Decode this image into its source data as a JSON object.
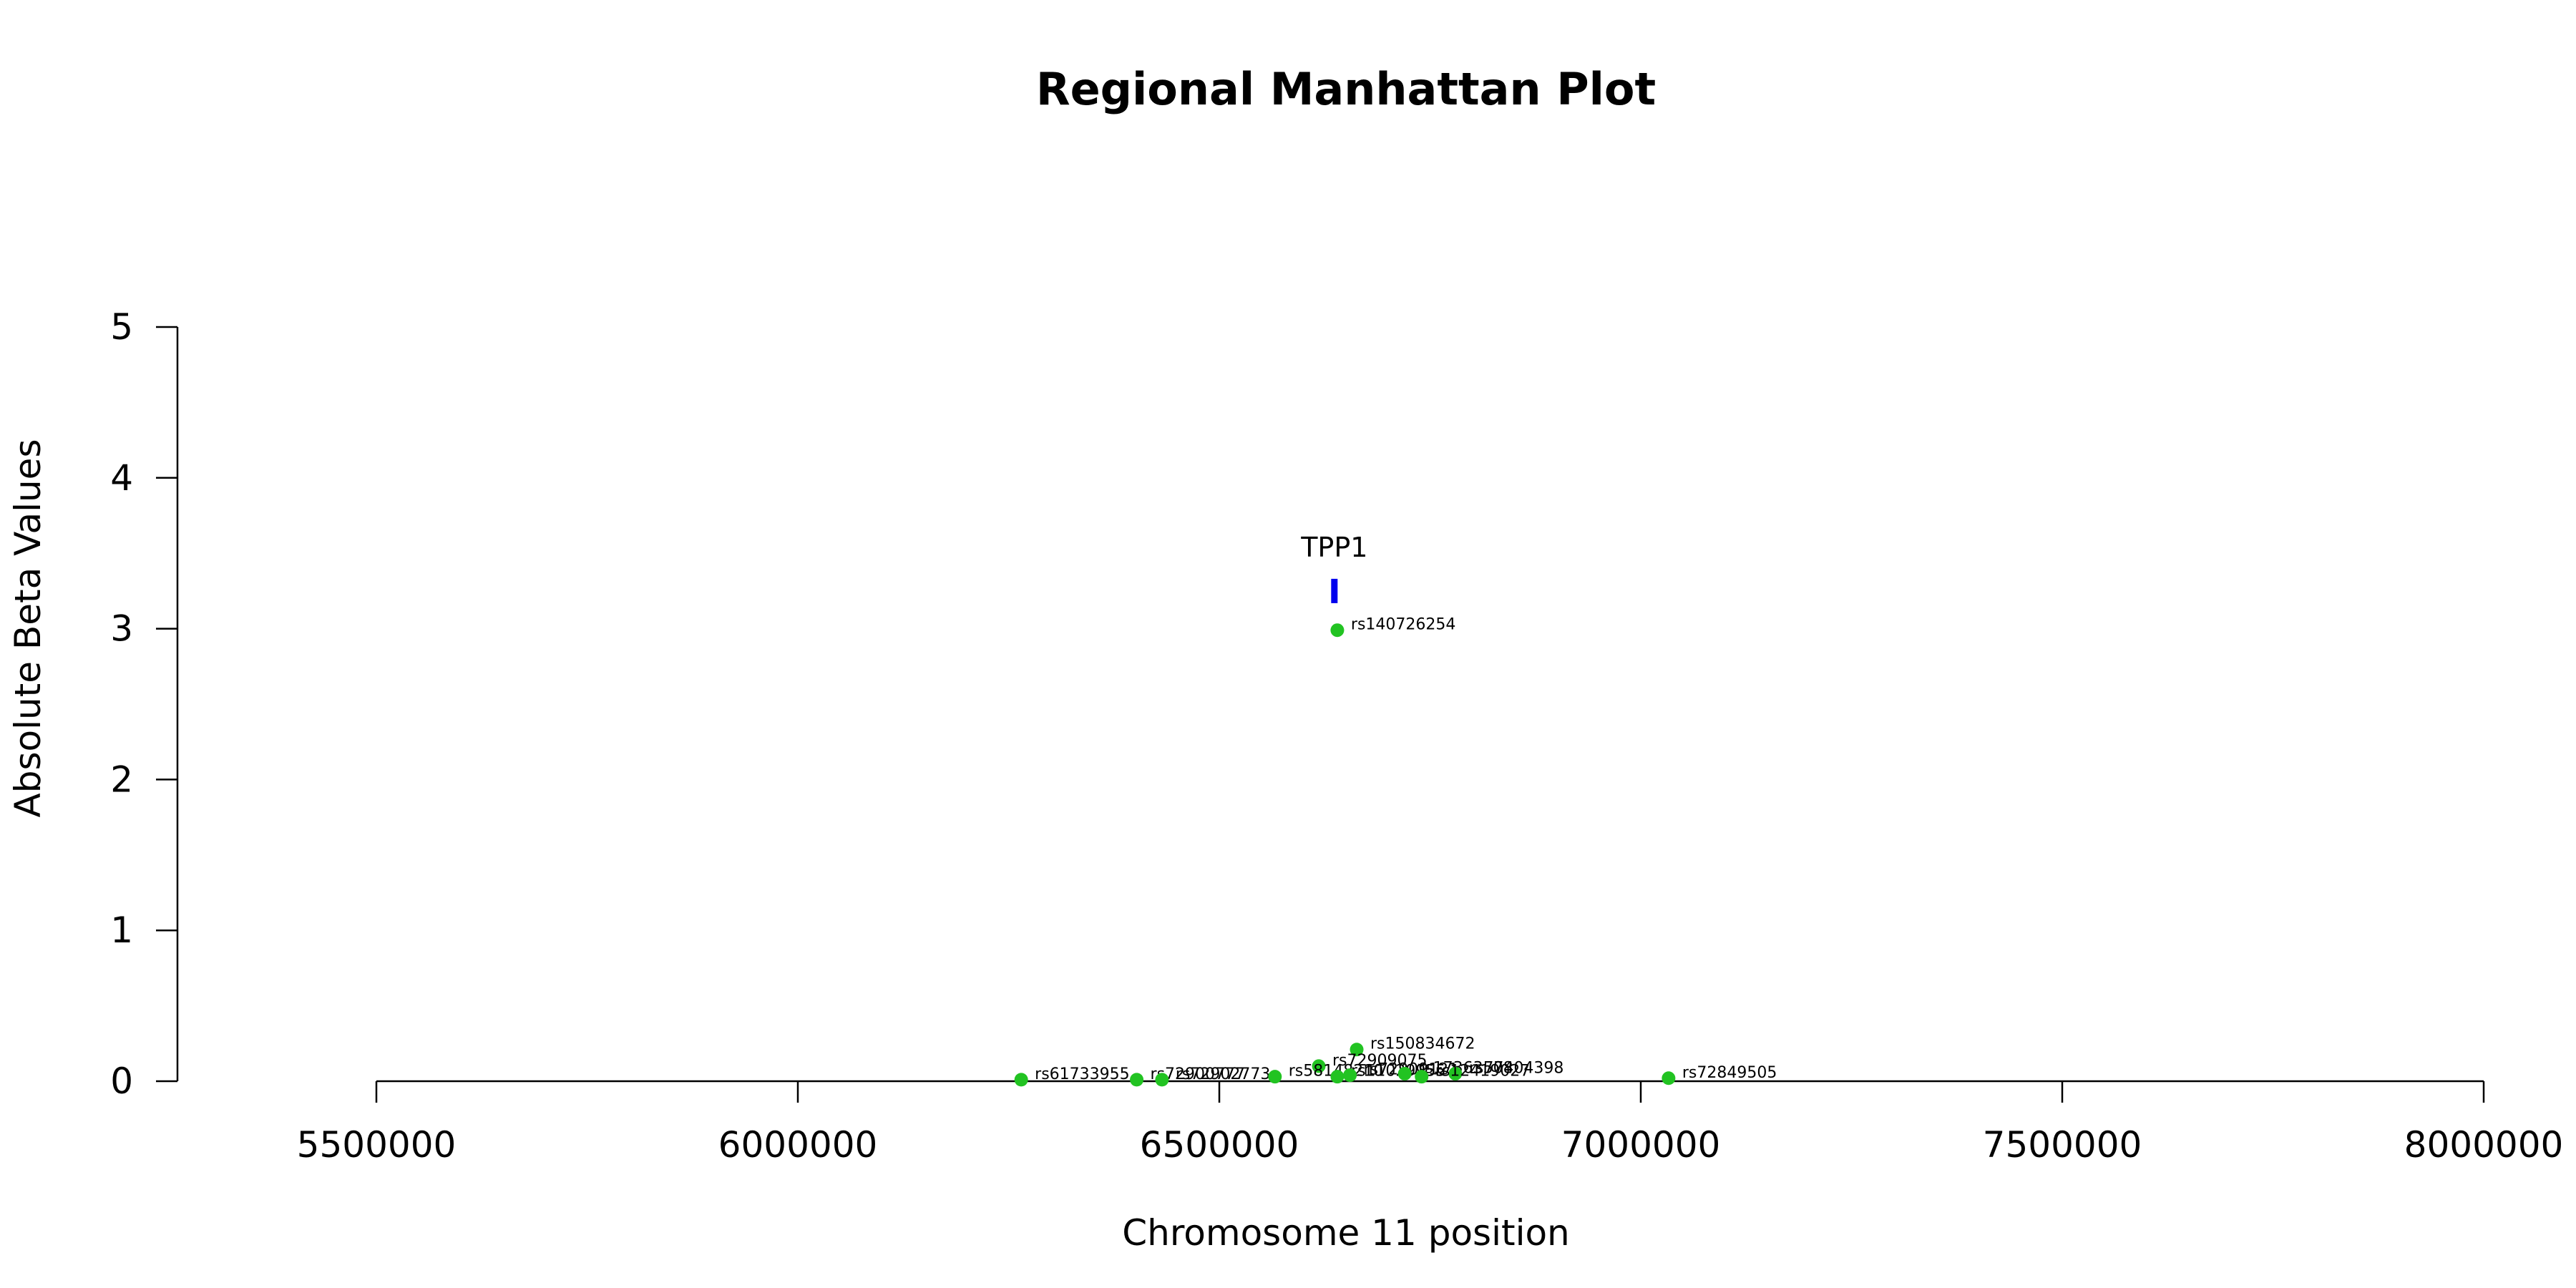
{
  "chart_data": {
    "type": "scatter",
    "title": "Regional Manhattan Plot",
    "xlabel": "Chromosome 11 position",
    "ylabel": "Absolute Beta Values",
    "xlim": [
      5500000,
      8000000
    ],
    "ylim": [
      0,
      5
    ],
    "x_ticks": [
      5500000,
      6000000,
      6500000,
      7000000,
      7500000,
      8000000
    ],
    "x_tick_labels": [
      "5500000",
      "6000000",
      "6500000",
      "7000000",
      "7500000",
      "8000000"
    ],
    "y_ticks": [
      0,
      1,
      2,
      3,
      4,
      5
    ],
    "y_tick_labels": [
      "0",
      "1",
      "2",
      "3",
      "4",
      "5"
    ],
    "grid": false,
    "point_color": "#22c322",
    "gene_color": "#0000ee",
    "genes": [
      {
        "name": "TPP1",
        "start": 6633000,
        "end": 6640000,
        "y": 3.25
      }
    ],
    "points": [
      {
        "id": "rs140726254",
        "x": 6640000,
        "y": 2.99
      },
      {
        "id": "rs150834672",
        "x": 6663000,
        "y": 0.21
      },
      {
        "id": "rs72909075",
        "x": 6618000,
        "y": 0.1
      },
      {
        "id": "rs61733955",
        "x": 6265000,
        "y": 0.01
      },
      {
        "id": "rs72900777",
        "x": 6402000,
        "y": 0.01
      },
      {
        "id": "rs72902773",
        "x": 6432000,
        "y": 0.01
      },
      {
        "id": "rs58148210",
        "x": 6566000,
        "y": 0.03
      },
      {
        "id": "rs11029955",
        "x": 6640000,
        "y": 0.03
      },
      {
        "id": "rs72909121",
        "x": 6655000,
        "y": 0.04
      },
      {
        "id": "rs17363508",
        "x": 6720000,
        "y": 0.05
      },
      {
        "id": "rs77404398",
        "x": 6780000,
        "y": 0.05
      },
      {
        "id": "rs12419027",
        "x": 6740000,
        "y": 0.03
      },
      {
        "id": "rs72849505",
        "x": 7033000,
        "y": 0.02
      }
    ]
  }
}
